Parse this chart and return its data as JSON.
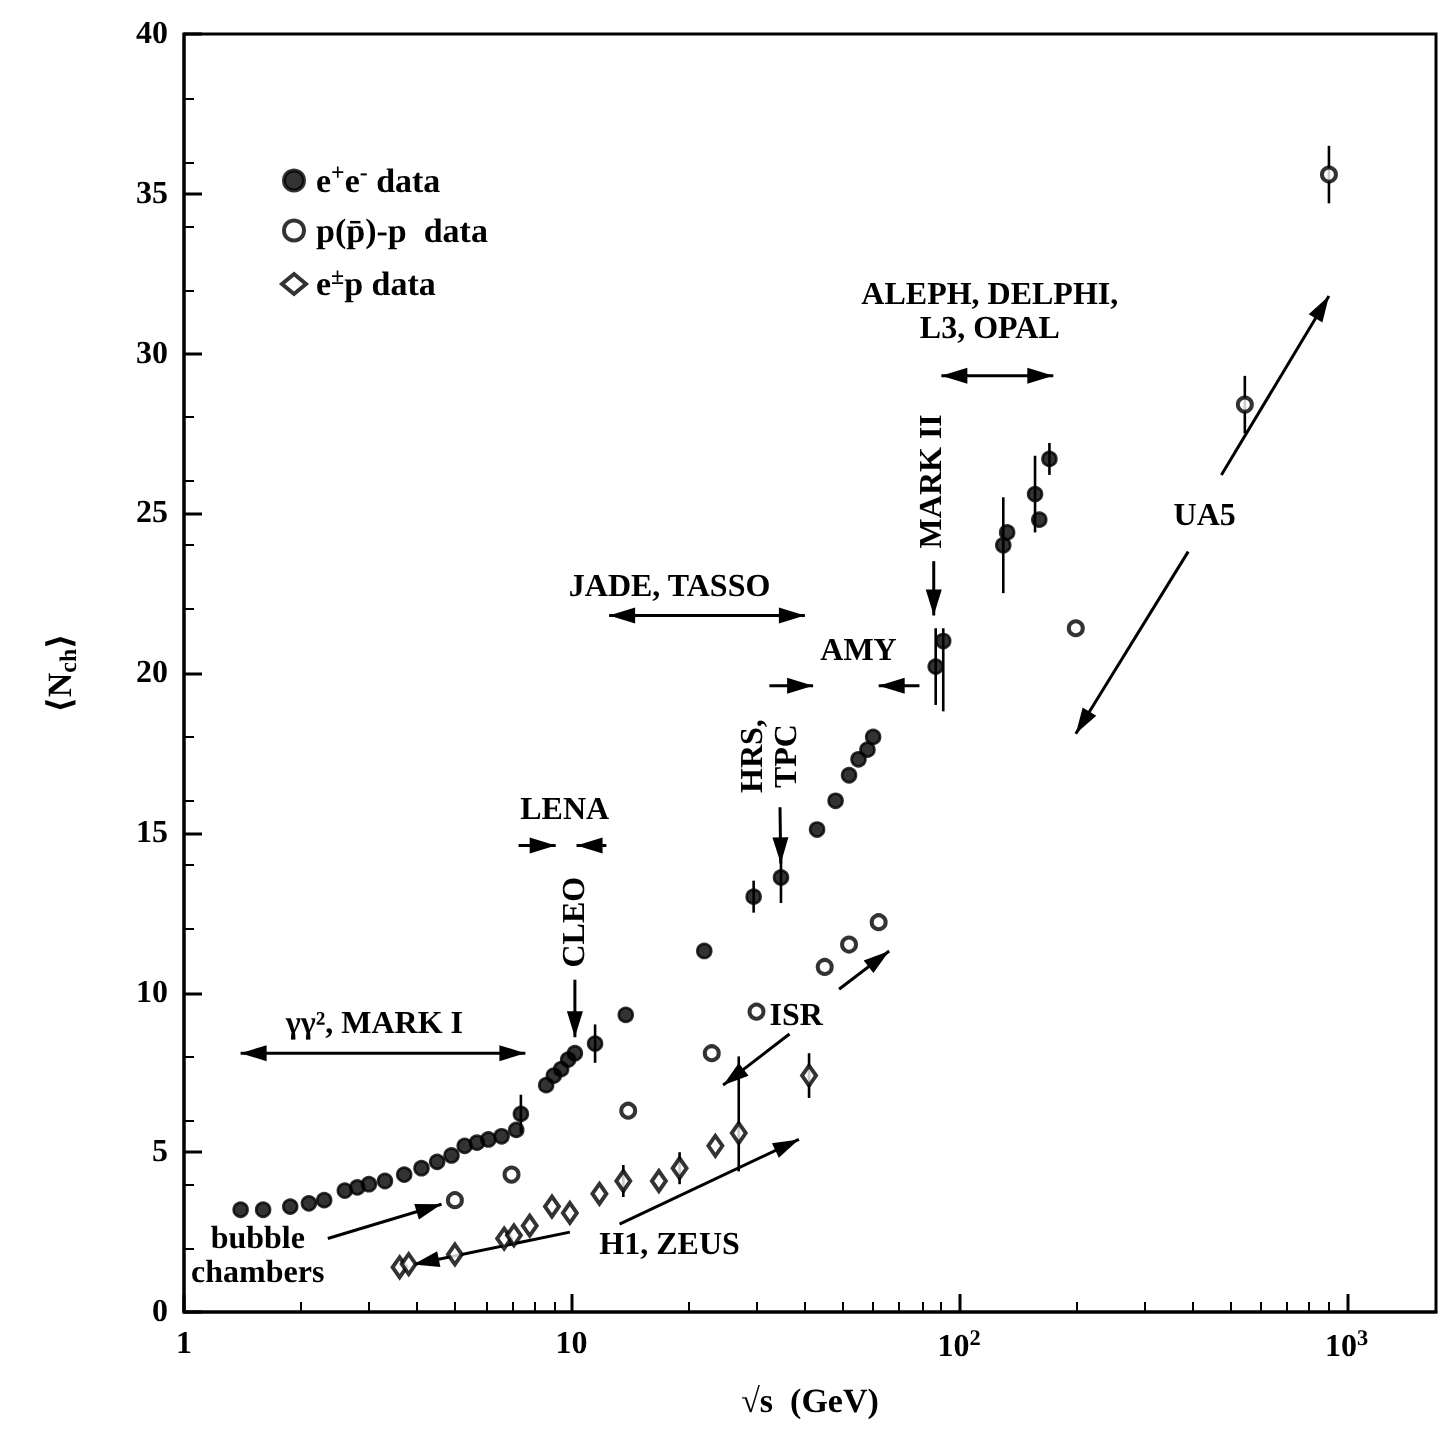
{
  "chart_data": {
    "type": "scatter",
    "xlabel": "√s  (GeV)",
    "ylabel": "⟨N$_{ch}$⟩",
    "log": "x",
    "grid": false,
    "legend": "top left",
    "xlim": [
      1,
      1700
    ],
    "xticks": [
      1,
      10,
      {
        "value": 100,
        "label": "10$^{2}$"
      },
      {
        "value": 1000,
        "label": "10$^{3}$"
      }
    ],
    "ylim": [
      0,
      40
    ],
    "yticks": [
      0,
      5,
      10,
      15,
      20,
      25,
      30,
      35,
      40
    ],
    "series": [
      {
        "name": "e$^{+}$e$^{-}$ data",
        "color": "#000000",
        "marker": "circle",
        "x": [
          1.4,
          1.6,
          1.88,
          2.1,
          2.3,
          2.6,
          2.8,
          3.0,
          3.3,
          3.7,
          4.1,
          4.5,
          4.9,
          5.3,
          5.7,
          6.1,
          6.6,
          7.2,
          7.4,
          8.6,
          9.0,
          9.4,
          9.8,
          10.2,
          11.5,
          13.8,
          22,
          29.5,
          34.7,
          43,
          48,
          52,
          55,
          58,
          60,
          87,
          91,
          130,
          133,
          157,
          161,
          171
        ],
        "values": [
          3.2,
          3.2,
          3.3,
          3.4,
          3.5,
          3.8,
          3.9,
          4.0,
          4.1,
          4.3,
          4.5,
          4.7,
          4.9,
          5.2,
          5.3,
          5.4,
          5.5,
          5.7,
          6.2,
          7.1,
          7.4,
          7.6,
          7.9,
          8.1,
          8.4,
          9.3,
          11.3,
          13.0,
          13.6,
          15.1,
          16.0,
          16.8,
          17.3,
          17.6,
          18.0,
          20.2,
          21.0,
          24.0,
          24.4,
          25.6,
          24.8,
          26.7
        ],
        "errors": [
          null,
          null,
          null,
          null,
          null,
          null,
          null,
          null,
          null,
          null,
          null,
          null,
          null,
          null,
          null,
          null,
          null,
          null,
          0.6,
          null,
          null,
          null,
          null,
          null,
          0.6,
          null,
          null,
          0.5,
          0.8,
          null,
          null,
          null,
          null,
          null,
          null,
          1.2,
          [
            18.8,
            21.4
          ],
          1.5,
          null,
          1.2,
          null,
          0.5
        ]
      },
      {
        "name": "p(p̄)-p  data",
        "color": "#000000",
        "marker": "circle",
        "x": [
          5.0,
          7.0,
          14,
          23,
          30,
          45,
          52,
          62,
          200,
          546,
          900
        ],
        "values": [
          3.5,
          4.3,
          6.3,
          8.1,
          9.4,
          10.8,
          11.5,
          12.2,
          21.4,
          28.4,
          35.6
        ],
        "errors": [
          null,
          null,
          null,
          null,
          null,
          null,
          null,
          null,
          null,
          0.9,
          0.9
        ]
      },
      {
        "name": "e$^{±}$p data",
        "color": "#000000",
        "marker": "diamond",
        "x": [
          3.6,
          3.8,
          5.0,
          6.7,
          7.1,
          7.8,
          8.9,
          9.9,
          11.8,
          13.6,
          16.8,
          19,
          23.5,
          27,
          41
        ],
        "values": [
          1.4,
          1.5,
          1.8,
          2.3,
          2.4,
          2.7,
          3.3,
          3.1,
          3.7,
          4.1,
          4.1,
          4.5,
          5.2,
          5.6,
          7.4
        ],
        "errors": [
          null,
          null,
          null,
          null,
          null,
          null,
          null,
          null,
          null,
          0.5,
          null,
          0.5,
          null,
          [
            4.4,
            8.0
          ],
          0.7
        ]
      }
    ],
    "annotations": [
      "γγ², MARK I",
      "LENA",
      "CLEO",
      "JADE, TASSO",
      {
        "text": "HRS,\nTPC",
        "x": 34.7,
        "y": 13.6
      },
      "AMY",
      "MARK II",
      "ALEPH, DELPHI,\nL3, OPAL",
      "UA5",
      "ISR",
      {
        "text": "bubble\nchambers",
        "x": 5.0,
        "y": 3.5
      },
      {
        "text": "H1, ZEUS",
        "x": 3.6,
        "y": 1.4
      }
    ]
  }
}
